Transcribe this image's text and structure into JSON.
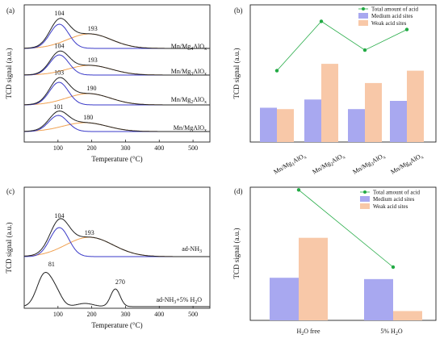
{
  "chart_data": [
    {
      "panel": "(a)",
      "type": "line",
      "xlabel": "Temperature (°C)",
      "ylabel": "TCD signal (a.u.)",
      "xlim": [
        0,
        550
      ],
      "xticks": [
        100,
        200,
        300,
        400,
        500
      ],
      "samples": [
        {
          "name": "Mn/Mg4AlOx",
          "peak_medium": 104,
          "peak_weak": 193
        },
        {
          "name": "Mn/Mg3AlOx",
          "peak_medium": 104,
          "peak_weak": 193
        },
        {
          "name": "Mn/Mg2AlOx",
          "peak_medium": 103,
          "peak_weak": 190
        },
        {
          "name": "Mn/MgAlOx",
          "peak_medium": 101,
          "peak_weak": 180
        }
      ],
      "colors": {
        "total": "#222222",
        "medium": "#3a3ac8",
        "weak": "#f0a050"
      }
    },
    {
      "panel": "(b)",
      "type": "bar",
      "ylabel": "TCD signal (a.u.)",
      "categories": [
        "Mn/MgAlOx",
        "Mn/Mg2AlOx",
        "Mn/Mg3AlOx",
        "Mn/Mg4AlOx"
      ],
      "series": [
        {
          "name": "Medium acid sites",
          "values": [
            0.25,
            0.31,
            0.24,
            0.3
          ],
          "color": "#a8a8f0"
        },
        {
          "name": "Weak acid sites",
          "values": [
            0.24,
            0.57,
            0.43,
            0.52
          ],
          "color": "#f8c8a8"
        },
        {
          "name": "Total amount of acid",
          "values": [
            0.52,
            0.88,
            0.67,
            0.82
          ],
          "color": "#22aa44"
        }
      ],
      "ylim": [
        0,
        1
      ]
    },
    {
      "panel": "(c)",
      "type": "line",
      "xlabel": "Temperature (°C)",
      "ylabel": "TCD signal (a.u.)",
      "xlim": [
        0,
        550
      ],
      "xticks": [
        100,
        200,
        300,
        400,
        500
      ],
      "samples": [
        {
          "name": "ad-NH3",
          "peaks": [
            104,
            193
          ]
        },
        {
          "name": "ad-NH3+5% H2O",
          "peaks": [
            81,
            270
          ]
        }
      ]
    },
    {
      "panel": "(d)",
      "type": "bar",
      "ylabel": "TCD signal (a.u.)",
      "categories": [
        "H2O free",
        "5% H2O"
      ],
      "series": [
        {
          "name": "Medium acid sites",
          "values": [
            0.32,
            0.31
          ],
          "color": "#a8a8f0"
        },
        {
          "name": "Weak acid sites",
          "values": [
            0.62,
            0.07
          ],
          "color": "#f8c8a8"
        },
        {
          "name": "Total amount of acid",
          "values": [
            0.98,
            0.4
          ],
          "color": "#22aa44"
        }
      ],
      "ylim": [
        0,
        1
      ]
    }
  ],
  "labels": {
    "a": "(a)",
    "b": "(b)",
    "c": "(c)",
    "d": "(d)",
    "ylabel": "TCD signal (a.u.)",
    "xlabel": "Temperature (°C)",
    "legend_total": "Total amount of acid",
    "legend_medium": "Medium acid sites",
    "legend_weak": "Weak acid sites"
  }
}
